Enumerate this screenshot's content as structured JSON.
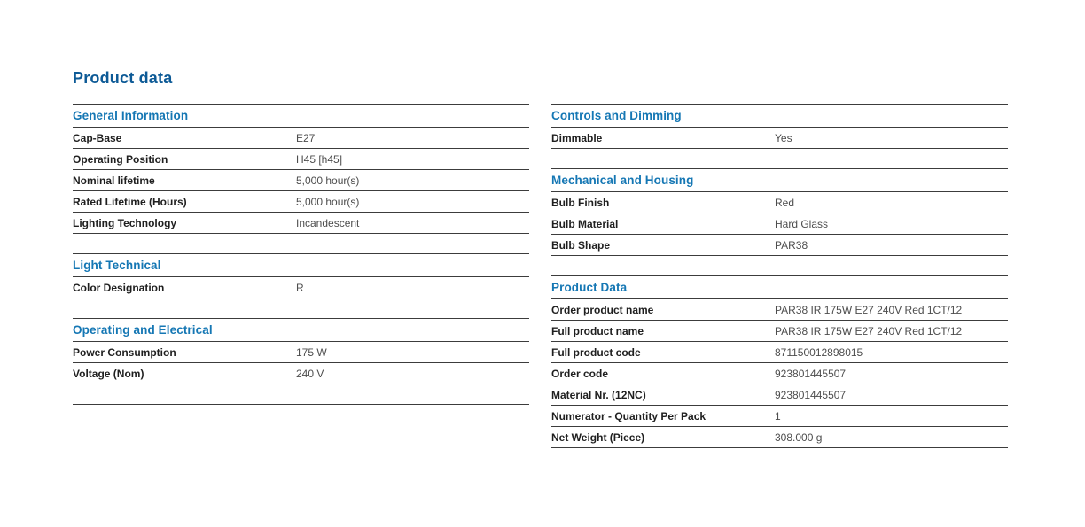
{
  "page_title": "Product data",
  "colors": {
    "title_blue": "#0d5a96",
    "section_heading_blue": "#1577b4",
    "rule_gray": "#3c3c3c",
    "label_text": "#1f1f1f",
    "value_text": "#4d4d4d"
  },
  "left_column": {
    "sections": [
      {
        "title": "General Information",
        "rows": [
          {
            "label": "Cap-Base",
            "value": "E27"
          },
          {
            "label": "Operating Position",
            "value": "H45 [h45]"
          },
          {
            "label": "Nominal lifetime",
            "value": "5,000 hour(s)"
          },
          {
            "label": "Rated Lifetime (Hours)",
            "value": "5,000 hour(s)"
          },
          {
            "label": "Lighting Technology",
            "value": "Incandescent"
          }
        ]
      },
      {
        "title": "Light Technical",
        "rows": [
          {
            "label": "Color Designation",
            "value": "R"
          }
        ]
      },
      {
        "title": "Operating and Electrical",
        "rows": [
          {
            "label": "Power Consumption",
            "value": "175 W"
          },
          {
            "label": "Voltage (Nom)",
            "value": "240 V"
          }
        ]
      }
    ]
  },
  "right_column": {
    "sections": [
      {
        "title": "Controls and Dimming",
        "rows": [
          {
            "label": "Dimmable",
            "value": "Yes"
          }
        ]
      },
      {
        "title": "Mechanical and Housing",
        "rows": [
          {
            "label": "Bulb Finish",
            "value": "Red"
          },
          {
            "label": "Bulb Material",
            "value": "Hard Glass"
          },
          {
            "label": "Bulb Shape",
            "value": "PAR38"
          }
        ]
      },
      {
        "title": "Product Data",
        "rows": [
          {
            "label": "Order product name",
            "value": "PAR38 IR 175W E27 240V Red 1CT/12"
          },
          {
            "label": "Full product name",
            "value": "PAR38 IR 175W E27 240V Red 1CT/12"
          },
          {
            "label": "Full product code",
            "value": "871150012898015"
          },
          {
            "label": "Order code",
            "value": "923801445507"
          },
          {
            "label": "Material Nr. (12NC)",
            "value": "923801445507"
          },
          {
            "label": "Numerator - Quantity Per Pack",
            "value": "1"
          },
          {
            "label": "Net Weight (Piece)",
            "value": "308.000 g"
          }
        ]
      }
    ]
  }
}
